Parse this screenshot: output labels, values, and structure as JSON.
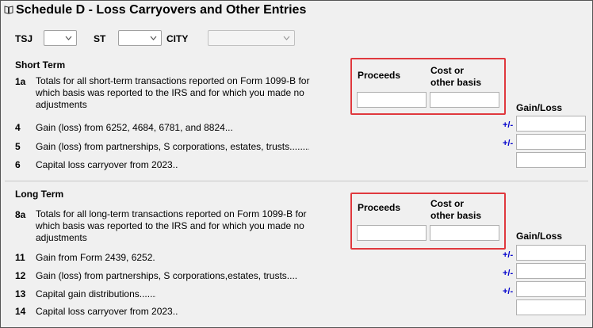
{
  "title": "Schedule D - Loss Carryovers and Other Entries",
  "header_fields": {
    "tsj_label": "TSJ",
    "st_label": "ST",
    "city_label": "CITY"
  },
  "short_term": {
    "heading": "Short Term",
    "line_1a": {
      "num": "1a",
      "text1": "Totals for all short-term transactions reported on Form 1099-B for",
      "text2": "which basis was reported to the IRS and for which you made no",
      "text3": "adjustments"
    },
    "proceeds_label": "Proceeds",
    "cost_label1": "Cost or",
    "cost_label2": "other basis",
    "gainloss_label": "Gain/Loss",
    "lines": [
      {
        "num": "4",
        "text": "Gain (loss) from 6252, 4684, 6781, and 8824",
        "pm": "+/-"
      },
      {
        "num": "5",
        "text": "Gain (loss) from partnerships, S corporations, estates, trusts",
        "pm": "+/-"
      },
      {
        "num": "6",
        "text": "Capital loss carryover from 2023",
        "pm": ""
      }
    ]
  },
  "long_term": {
    "heading": "Long Term",
    "line_8a": {
      "num": "8a",
      "text1": "Totals for all long-term transactions reported on Form 1099-B for",
      "text2": "which basis was reported to the IRS and for which you made no",
      "text3": "adjustments"
    },
    "proceeds_label": "Proceeds",
    "cost_label1": "Cost or",
    "cost_label2": "other basis",
    "gainloss_label": "Gain/Loss",
    "lines": [
      {
        "num": "11",
        "text": "Gain from Form 2439, 6252",
        "pm": "+/-"
      },
      {
        "num": "12",
        "text": "Gain (loss) from partnerships, S corporations,estates, trusts",
        "pm": "+/-"
      },
      {
        "num": "13",
        "text": "Capital gain distributions",
        "pm": "+/-"
      },
      {
        "num": "14",
        "text": "Capital loss carryover from 2023",
        "pm": ""
      }
    ]
  },
  "colors": {
    "highlight": "#e0393e",
    "link": "#0000cc"
  }
}
